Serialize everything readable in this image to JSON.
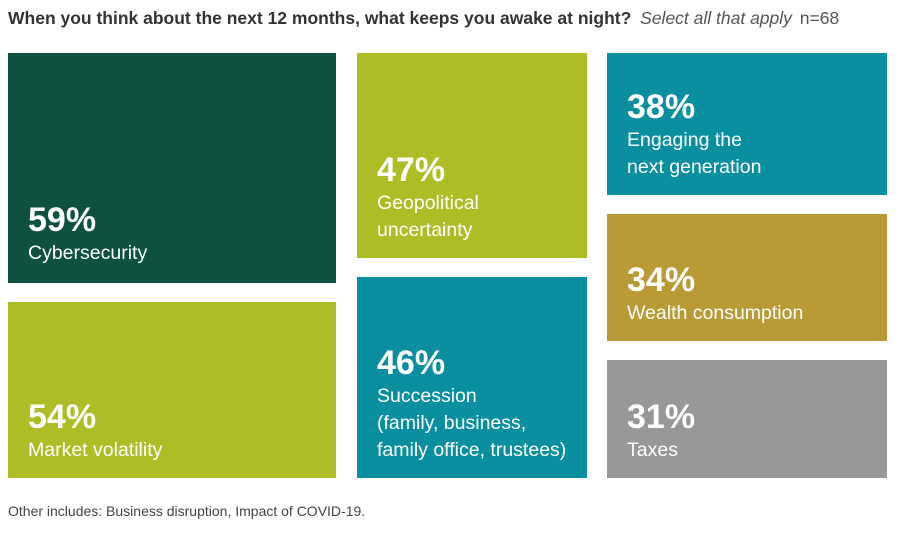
{
  "title": {
    "main": "When you think about the next 12 months, what keeps you awake at night?",
    "instruction": "Select all that apply",
    "sample": "n=68"
  },
  "chart_data": {
    "type": "treemap",
    "title": "When you think about the next 12 months, what keeps you awake at night?",
    "unit": "%",
    "items": [
      {
        "pct_label": "59%",
        "value": 59,
        "label": "Cybersecurity",
        "color": "#0f5141"
      },
      {
        "pct_label": "54%",
        "value": 54,
        "label": "Market volatility",
        "color": "#aebd25"
      },
      {
        "pct_label": "47%",
        "value": 47,
        "label": "Geopolitical\nuncertainty",
        "color": "#aebd25"
      },
      {
        "pct_label": "46%",
        "value": 46,
        "label": "Succession\n(family, business,\nfamily office, trustees)",
        "color": "#0a8fa0"
      },
      {
        "pct_label": "38%",
        "value": 38,
        "label": "Engaging the\nnext generation",
        "color": "#0a8fa0"
      },
      {
        "pct_label": "34%",
        "value": 34,
        "label": "Wealth consumption",
        "color": "#b99a35"
      },
      {
        "pct_label": "31%",
        "value": 31,
        "label": "Taxes",
        "color": "#97989a"
      }
    ]
  },
  "footnote": "Other includes: Business disruption, Impact of COVID-19."
}
